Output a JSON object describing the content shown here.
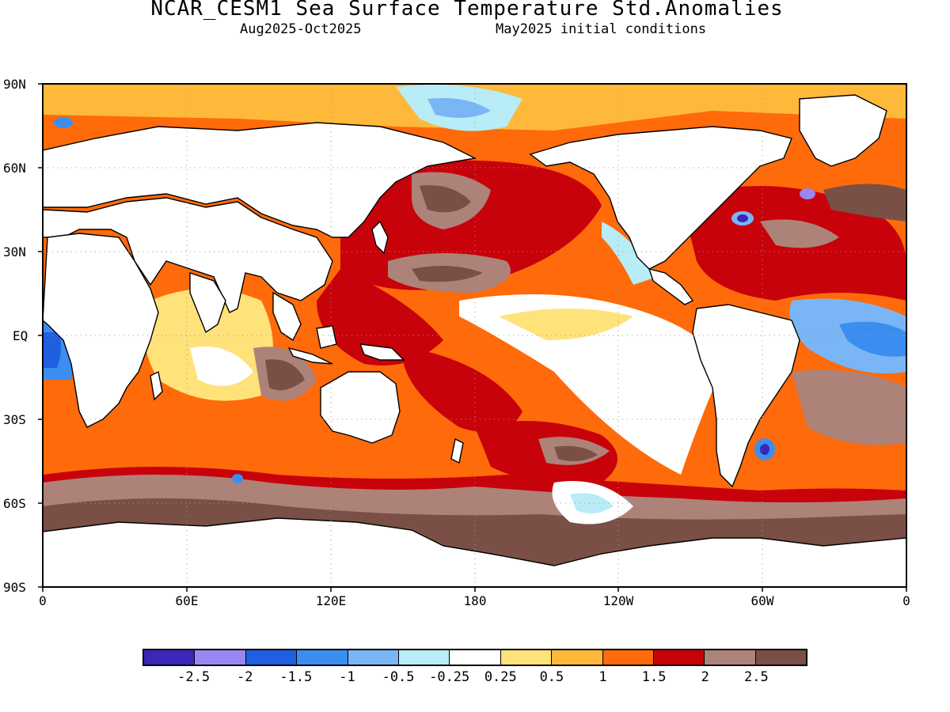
{
  "header": {
    "title": "NCAR_CESM1 Sea Surface Temperature Std.Anomalies",
    "period": "Aug2025-Oct2025",
    "init": "May2025 initial conditions"
  },
  "axes": {
    "lat_labels": [
      "90N",
      "60N",
      "30N",
      "EQ",
      "30S",
      "60S",
      "90S"
    ],
    "lon_labels": [
      "0",
      "60E",
      "120E",
      "180",
      "120W",
      "60W",
      "0"
    ]
  },
  "legend": {
    "colors": [
      "#3a26b8",
      "#9a86f2",
      "#1f5fe0",
      "#3b8ef0",
      "#7ab6f5",
      "#b8ecf7",
      "#ffffff",
      "#ffe27a",
      "#ffb93a",
      "#ff6a0a",
      "#c8020a",
      "#ad8279",
      "#7a5046"
    ],
    "labels": [
      "-2.5",
      "-2",
      "-1.5",
      "-1",
      "-0.5",
      "-0.25",
      "0.25",
      "0.5",
      "1",
      "1.5",
      "2",
      "2.5"
    ]
  },
  "map": {
    "land_color": "#ffffff",
    "coastline_color": "#000000",
    "grid": "dotted"
  }
}
